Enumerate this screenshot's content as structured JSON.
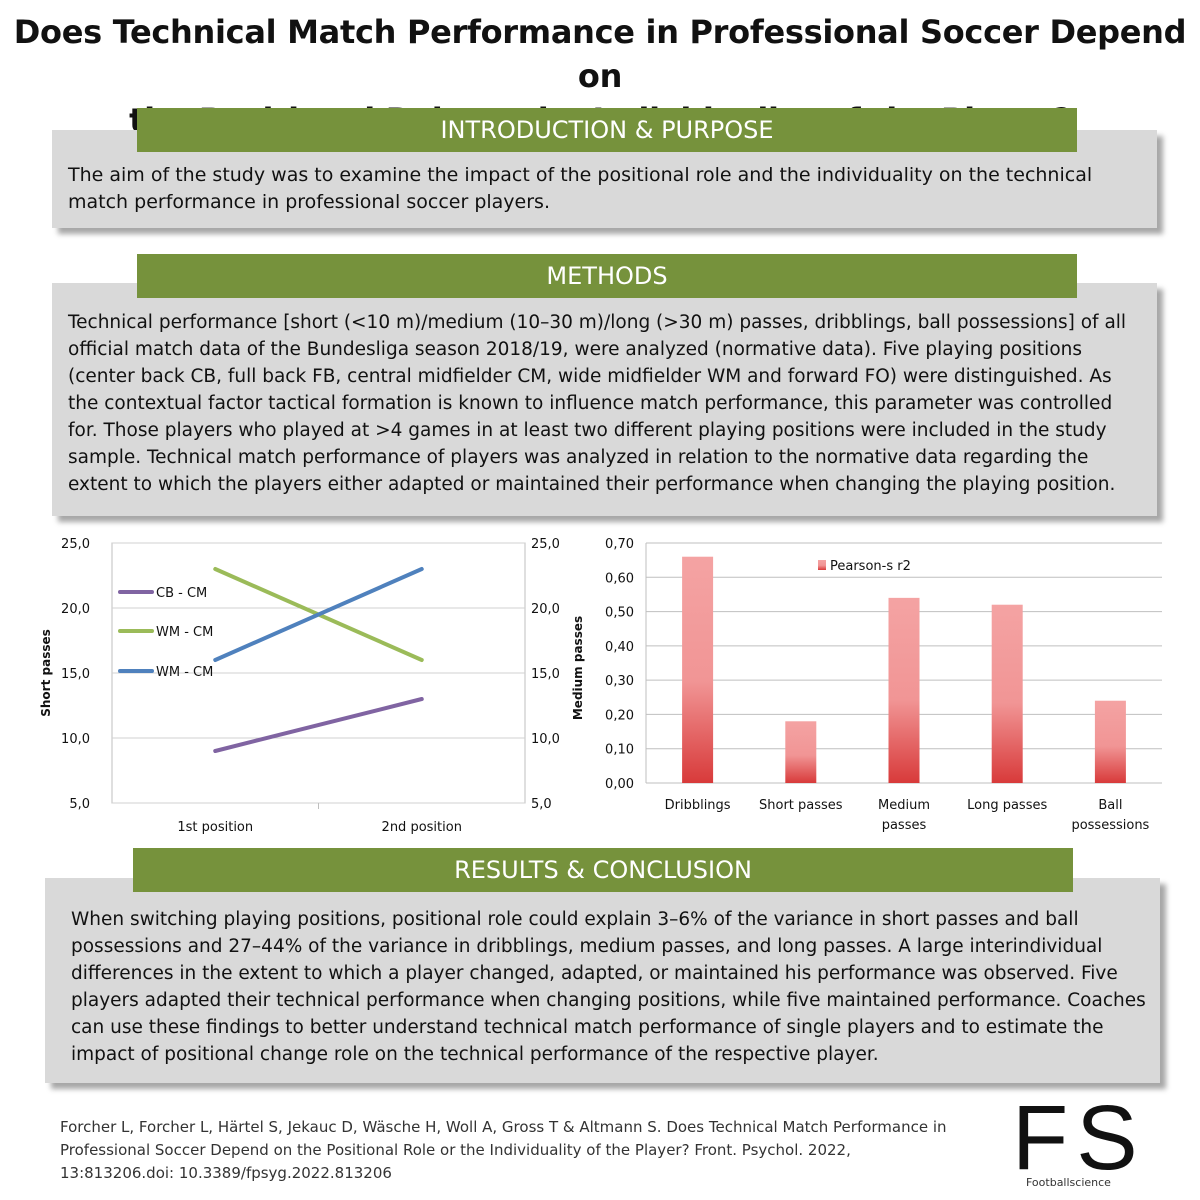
{
  "title": {
    "line1": "Does Technical Match Performance in Professional Soccer Depend on",
    "line2": "the Positional Role or the Individuality of the Player?"
  },
  "introduction": {
    "heading": "INTRODUCTION & PURPOSE",
    "text": "The aim of the study was to examine the impact of the positional role and the individuality on the technical match performance in professional soccer players."
  },
  "methods": {
    "heading": "METHODS",
    "text": "Technical performance [short (<10 m)/medium (10–30 m)/long (>30 m) passes, dribblings, ball possessions] of all official match data of the Bundesliga season 2018/19, were analyzed (normative data). Five playing positions (center back CB, full back FB, central midfielder CM, wide midfielder WM and forward FO) were distinguished. As the contextual factor tactical formation is known to influence match performance, this parameter was controlled for. Those players who played at >4 games in at least two different playing positions were included in the study sample. Technical match performance of players was analyzed in relation to the normative data regarding the extent to which the players either adapted or maintained their performance when changing the playing position."
  },
  "results": {
    "heading": "RESULTS & CONCLUSION",
    "text": "When switching playing positions, positional role could explain 3–6% of the variance in short passes and ball possessions and 27–44% of the variance in dribblings, medium passes, and long passes. A large interindividual differences in the extent to which a player changed, adapted, or maintained his performance was observed. Five players adapted their technical performance when changing positions, while five maintained performance. Coaches can use these findings to better understand technical match performance of single players and to estimate the impact of positional change role on the technical performance of the respective player."
  },
  "citation": "Forcher L, Forcher L, Härtel S, Jekauc D, Wäsche H, Woll A, Gross T & Altmann S. Does Technical Match Performance in Professional Soccer Depend on the Positional Role or the Individuality of the Player? Front. Psychol. 2022, 13:813206.doi: 10.3389/fpsyg.2022.813206",
  "logo": {
    "mark": "FS",
    "text": "Footballscience"
  },
  "colors": {
    "banner": "#76923c",
    "box": "#d9d9d9",
    "cb_cm": "#8064a2",
    "wm_cm_green": "#9bbb59",
    "wm_cm_blue": "#4f81bd",
    "bar_top": "#f4a3a3",
    "bar_bottom": "#d83a3a"
  },
  "chart_data": [
    {
      "type": "line",
      "categories": [
        "1st position",
        "2nd position"
      ],
      "ylabel": "Short passes",
      "y2label": "Medium passes",
      "ylim": [
        5,
        25
      ],
      "y2lim": [
        5,
        25
      ],
      "yticks": [
        "5,0",
        "10,0",
        "15,0",
        "20,0",
        "25,0"
      ],
      "y2ticks": [
        "5,0",
        "10,0",
        "15,0",
        "20,0",
        "25,0"
      ],
      "grid": true,
      "legend": "inside-left",
      "series": [
        {
          "name": "CB - CM",
          "values": [
            9,
            13
          ],
          "color": "#8064a2"
        },
        {
          "name": "WM - CM",
          "values": [
            23,
            16
          ],
          "color": "#9bbb59"
        },
        {
          "name": "WM - CM",
          "values": [
            16,
            23
          ],
          "color": "#4f81bd"
        }
      ]
    },
    {
      "type": "bar",
      "categories": [
        "Dribblings",
        "Short passes",
        "Medium passes",
        "Long passes",
        "Ball possessions"
      ],
      "category_lines": [
        [
          "Dribblings"
        ],
        [
          "Short passes"
        ],
        [
          "Medium",
          "passes"
        ],
        [
          "Long passes"
        ],
        [
          "Ball",
          "possessions"
        ]
      ],
      "series": [
        {
          "name": "Pearson-s r2",
          "values": [
            0.66,
            0.18,
            0.54,
            0.52,
            0.24
          ]
        }
      ],
      "ylim": [
        0,
        0.7
      ],
      "yticks": [
        "0,00",
        "0,10",
        "0,20",
        "0,30",
        "0,40",
        "0,50",
        "0,60",
        "0,70"
      ],
      "grid": true,
      "legend": "top-right"
    }
  ]
}
